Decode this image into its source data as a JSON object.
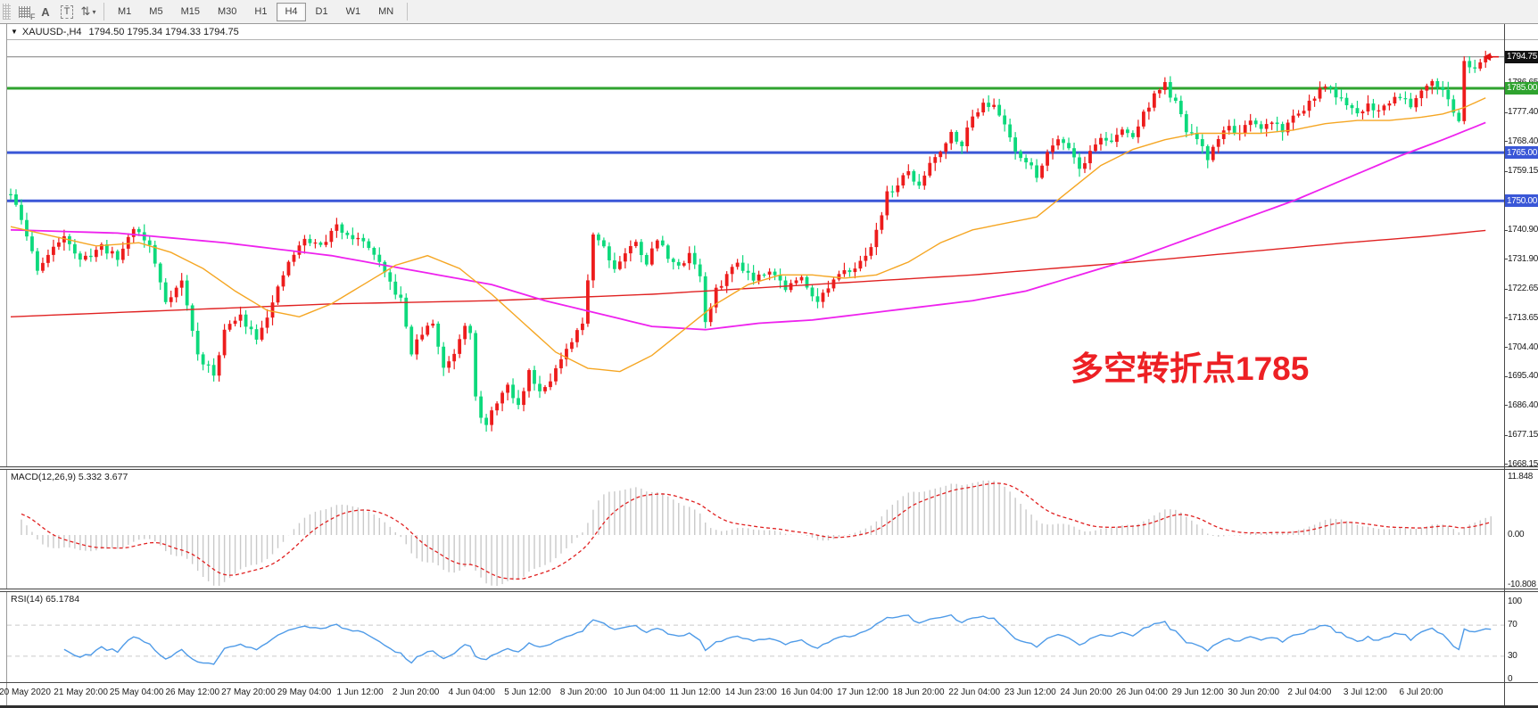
{
  "toolbar": {
    "icons": [
      {
        "name": "grid-icon-f",
        "glyph": "F"
      },
      {
        "name": "font-a-icon",
        "glyph": "A"
      },
      {
        "name": "text-box-icon",
        "glyph": "T"
      },
      {
        "name": "swap-arrows-icon",
        "glyph": "⇅"
      },
      {
        "name": "dropdown-caret-icon",
        "glyph": "▾"
      }
    ],
    "timeframes": [
      "M1",
      "M5",
      "M15",
      "M30",
      "H1",
      "H4",
      "D1",
      "W1",
      "MN"
    ],
    "active_timeframe": "H4"
  },
  "chart_header": {
    "symbol": "XAUUSD-,H4",
    "ohlc_text": "1794.50 1795.34 1794.33 1794.75"
  },
  "annotation": {
    "text": "多空转折点1785",
    "color": "#ed2024"
  },
  "price_axis": {
    "current_price": "1794.75",
    "ticks": [
      "1786.65",
      "1777.40",
      "1768.40",
      "1759.15",
      "1740.90",
      "1731.90",
      "1722.65",
      "1713.65",
      "1704.40",
      "1695.40",
      "1686.40",
      "1677.15",
      "1668.15"
    ],
    "badges": [
      {
        "label": "1794.75",
        "price": 1794.75,
        "bg": "#111111"
      },
      {
        "label": "1785.00",
        "price": 1785.0,
        "bg": "#2fa32f"
      },
      {
        "label": "1765.00",
        "price": 1765.0,
        "bg": "#3a57d7"
      },
      {
        "label": "1750.00",
        "price": 1750.0,
        "bg": "#3a57d7"
      }
    ]
  },
  "time_axis": {
    "labels": [
      "20 May 2020",
      "21 May 20:00",
      "25 May 04:00",
      "26 May 12:00",
      "27 May 20:00",
      "29 May 04:00",
      "1 Jun 12:00",
      "2 Jun 20:00",
      "4 Jun 04:00",
      "5 Jun 12:00",
      "8 Jun 20:00",
      "10 Jun 04:00",
      "11 Jun 12:00",
      "14 Jun 23:00",
      "16 Jun 04:00",
      "17 Jun 12:00",
      "18 Jun 20:00",
      "22 Jun 04:00",
      "23 Jun 12:00",
      "24 Jun 20:00",
      "26 Jun 04:00",
      "29 Jun 12:00",
      "30 Jun 20:00",
      "2 Jul 04:00",
      "3 Jul 12:00",
      "6 Jul 20:00"
    ]
  },
  "macd_panel": {
    "label": "MACD(12,26,9) 5.332 3.677",
    "axis": [
      "11.848",
      "0.00",
      "-10.808"
    ]
  },
  "rsi_panel": {
    "label": "RSI(14) 65.1784",
    "axis": [
      "100",
      "70",
      "30",
      "0"
    ],
    "levels": [
      70,
      30
    ]
  },
  "chart_data": {
    "type": "candlestick",
    "symbol": "XAUUSD",
    "timeframe": "H4",
    "bars": 278,
    "current_ohlc": {
      "open": 1794.5,
      "high": 1795.34,
      "low": 1794.33,
      "close": 1794.75
    },
    "price_range_visible": [
      1668.15,
      1799.0
    ],
    "key_levels": [
      {
        "price": 1794.75,
        "color": "#7d7d7d",
        "width": 1,
        "style": "solid",
        "note": "current price line"
      },
      {
        "price": 1785.0,
        "color": "#2fa32f",
        "width": 3,
        "style": "solid",
        "note": "green resistance line 1785"
      },
      {
        "price": 1765.0,
        "color": "#3a57d7",
        "width": 3,
        "style": "solid",
        "note": "blue support line 1765"
      },
      {
        "price": 1750.0,
        "color": "#3a57d7",
        "width": 3,
        "style": "solid",
        "note": "blue support line 1750"
      }
    ],
    "close_path_anchors": [
      [
        0,
        1752
      ],
      [
        2,
        1744
      ],
      [
        5,
        1729
      ],
      [
        8,
        1735
      ],
      [
        10,
        1740
      ],
      [
        13,
        1731
      ],
      [
        17,
        1736
      ],
      [
        20,
        1732
      ],
      [
        23,
        1742
      ],
      [
        26,
        1736
      ],
      [
        29,
        1719
      ],
      [
        32,
        1725
      ],
      [
        35,
        1702
      ],
      [
        38,
        1696
      ],
      [
        40,
        1710
      ],
      [
        43,
        1714
      ],
      [
        46,
        1708
      ],
      [
        49,
        1718
      ],
      [
        52,
        1731
      ],
      [
        55,
        1738
      ],
      [
        58,
        1736
      ],
      [
        61,
        1742
      ],
      [
        64,
        1739
      ],
      [
        67,
        1736
      ],
      [
        70,
        1727
      ],
      [
        73,
        1719
      ],
      [
        75,
        1703
      ],
      [
        77,
        1709
      ],
      [
        79,
        1712
      ],
      [
        81,
        1698
      ],
      [
        83,
        1703
      ],
      [
        85,
        1712
      ],
      [
        86,
        1710
      ],
      [
        87,
        1690
      ],
      [
        88,
        1682
      ],
      [
        89,
        1680
      ],
      [
        91,
        1688
      ],
      [
        93,
        1692
      ],
      [
        95,
        1686
      ],
      [
        97,
        1697
      ],
      [
        99,
        1691
      ],
      [
        101,
        1695
      ],
      [
        104,
        1703
      ],
      [
        107,
        1712
      ],
      [
        109,
        1740
      ],
      [
        111,
        1736
      ],
      [
        113,
        1729
      ],
      [
        115,
        1734
      ],
      [
        117,
        1737
      ],
      [
        119,
        1731
      ],
      [
        121,
        1738
      ],
      [
        123,
        1733
      ],
      [
        125,
        1729
      ],
      [
        127,
        1734
      ],
      [
        129,
        1727
      ],
      [
        130,
        1712
      ],
      [
        132,
        1722
      ],
      [
        134,
        1727
      ],
      [
        136,
        1731
      ],
      [
        139,
        1726
      ],
      [
        142,
        1729
      ],
      [
        145,
        1723
      ],
      [
        148,
        1726
      ],
      [
        151,
        1719
      ],
      [
        154,
        1725
      ],
      [
        157,
        1729
      ],
      [
        160,
        1732
      ],
      [
        162,
        1741
      ],
      [
        164,
        1752
      ],
      [
        166,
        1755
      ],
      [
        168,
        1759
      ],
      [
        170,
        1754
      ],
      [
        172,
        1762
      ],
      [
        174,
        1766
      ],
      [
        176,
        1771
      ],
      [
        178,
        1768
      ],
      [
        180,
        1776
      ],
      [
        182,
        1781
      ],
      [
        184,
        1779
      ],
      [
        186,
        1774
      ],
      [
        188,
        1766
      ],
      [
        190,
        1762
      ],
      [
        192,
        1758
      ],
      [
        194,
        1765
      ],
      [
        196,
        1770
      ],
      [
        198,
        1767
      ],
      [
        200,
        1760
      ],
      [
        202,
        1765
      ],
      [
        204,
        1770
      ],
      [
        206,
        1768
      ],
      [
        208,
        1772
      ],
      [
        210,
        1770
      ],
      [
        212,
        1777
      ],
      [
        214,
        1783
      ],
      [
        216,
        1786
      ],
      [
        218,
        1780
      ],
      [
        220,
        1772
      ],
      [
        222,
        1769
      ],
      [
        224,
        1763
      ],
      [
        226,
        1770
      ],
      [
        228,
        1773
      ],
      [
        230,
        1771
      ],
      [
        232,
        1774
      ],
      [
        234,
        1772
      ],
      [
        236,
        1775
      ],
      [
        238,
        1772
      ],
      [
        240,
        1776
      ],
      [
        242,
        1779
      ],
      [
        244,
        1782
      ],
      [
        246,
        1786
      ],
      [
        248,
        1783
      ],
      [
        250,
        1779
      ],
      [
        252,
        1777
      ],
      [
        254,
        1780
      ],
      [
        256,
        1778
      ],
      [
        258,
        1781
      ],
      [
        260,
        1783
      ],
      [
        262,
        1780
      ],
      [
        264,
        1785
      ],
      [
        266,
        1788
      ],
      [
        268,
        1784
      ],
      [
        270,
        1778
      ],
      [
        271,
        1774
      ],
      [
        272,
        1793
      ],
      [
        274,
        1792
      ],
      [
        275,
        1794
      ],
      [
        276,
        1795
      ],
      [
        277,
        1794.75
      ]
    ],
    "ma_lines": [
      {
        "name": "ma-slow-red",
        "color": "#e02222",
        "width": 1.4,
        "anchors": [
          [
            0,
            1714
          ],
          [
            30,
            1716
          ],
          [
            60,
            1718
          ],
          [
            90,
            1719
          ],
          [
            120,
            1721
          ],
          [
            150,
            1724
          ],
          [
            180,
            1727
          ],
          [
            210,
            1731
          ],
          [
            230,
            1734
          ],
          [
            250,
            1737
          ],
          [
            265,
            1739
          ],
          [
            277,
            1741
          ]
        ]
      },
      {
        "name": "ma-mid-magenta",
        "color": "#ee22ee",
        "width": 1.8,
        "anchors": [
          [
            0,
            1741
          ],
          [
            20,
            1740
          ],
          [
            40,
            1737
          ],
          [
            60,
            1733
          ],
          [
            80,
            1727
          ],
          [
            90,
            1724
          ],
          [
            100,
            1719
          ],
          [
            110,
            1715
          ],
          [
            120,
            1711
          ],
          [
            130,
            1710
          ],
          [
            140,
            1712
          ],
          [
            150,
            1713
          ],
          [
            160,
            1715
          ],
          [
            170,
            1717
          ],
          [
            180,
            1719
          ],
          [
            190,
            1722
          ],
          [
            200,
            1727
          ],
          [
            210,
            1732
          ],
          [
            220,
            1738
          ],
          [
            230,
            1744
          ],
          [
            240,
            1750
          ],
          [
            250,
            1757
          ],
          [
            260,
            1764
          ],
          [
            268,
            1769
          ],
          [
            277,
            1775
          ]
        ]
      },
      {
        "name": "ma-fast-orange",
        "color": "#f5a623",
        "width": 1.4,
        "anchors": [
          [
            0,
            1742
          ],
          [
            8,
            1739
          ],
          [
            16,
            1736
          ],
          [
            24,
            1737
          ],
          [
            30,
            1734
          ],
          [
            36,
            1729
          ],
          [
            42,
            1722
          ],
          [
            48,
            1716
          ],
          [
            54,
            1714
          ],
          [
            60,
            1718
          ],
          [
            66,
            1724
          ],
          [
            72,
            1730
          ],
          [
            78,
            1733
          ],
          [
            84,
            1729
          ],
          [
            90,
            1721
          ],
          [
            96,
            1712
          ],
          [
            102,
            1703
          ],
          [
            108,
            1698
          ],
          [
            114,
            1697
          ],
          [
            120,
            1702
          ],
          [
            126,
            1710
          ],
          [
            132,
            1718
          ],
          [
            138,
            1724
          ],
          [
            144,
            1727
          ],
          [
            150,
            1727
          ],
          [
            156,
            1726
          ],
          [
            162,
            1727
          ],
          [
            168,
            1731
          ],
          [
            174,
            1737
          ],
          [
            180,
            1741
          ],
          [
            186,
            1743
          ],
          [
            192,
            1745
          ],
          [
            198,
            1753
          ],
          [
            204,
            1761
          ],
          [
            210,
            1766
          ],
          [
            216,
            1769
          ],
          [
            222,
            1771
          ],
          [
            228,
            1771
          ],
          [
            234,
            1771
          ],
          [
            240,
            1772
          ],
          [
            246,
            1774
          ],
          [
            252,
            1775
          ],
          [
            258,
            1775
          ],
          [
            264,
            1776
          ],
          [
            268,
            1777
          ],
          [
            272,
            1779
          ],
          [
            276,
            1782
          ],
          [
            277,
            1782
          ]
        ]
      }
    ],
    "indicators": [
      {
        "name": "MACD",
        "params": [
          12,
          26,
          9
        ],
        "current_values": [
          5.332,
          3.677
        ],
        "axis_max": 11.848,
        "axis_min": -10.808
      },
      {
        "name": "RSI",
        "params": [
          14
        ],
        "current_value": 65.1784,
        "levels": [
          70,
          30
        ],
        "axis_range": [
          0,
          100
        ]
      }
    ],
    "colors": {
      "up_candle": "#ed1c1c",
      "down_candle": "#0dd97c",
      "macd_histogram": "#c9c9c9",
      "macd_signal": "#e02020",
      "rsi_line": "#4f9be8",
      "level_green": "#2fa32f",
      "level_blue": "#3a57d7",
      "price_line_gray": "#7d7d7d",
      "annotation_red": "#ed2024"
    }
  }
}
